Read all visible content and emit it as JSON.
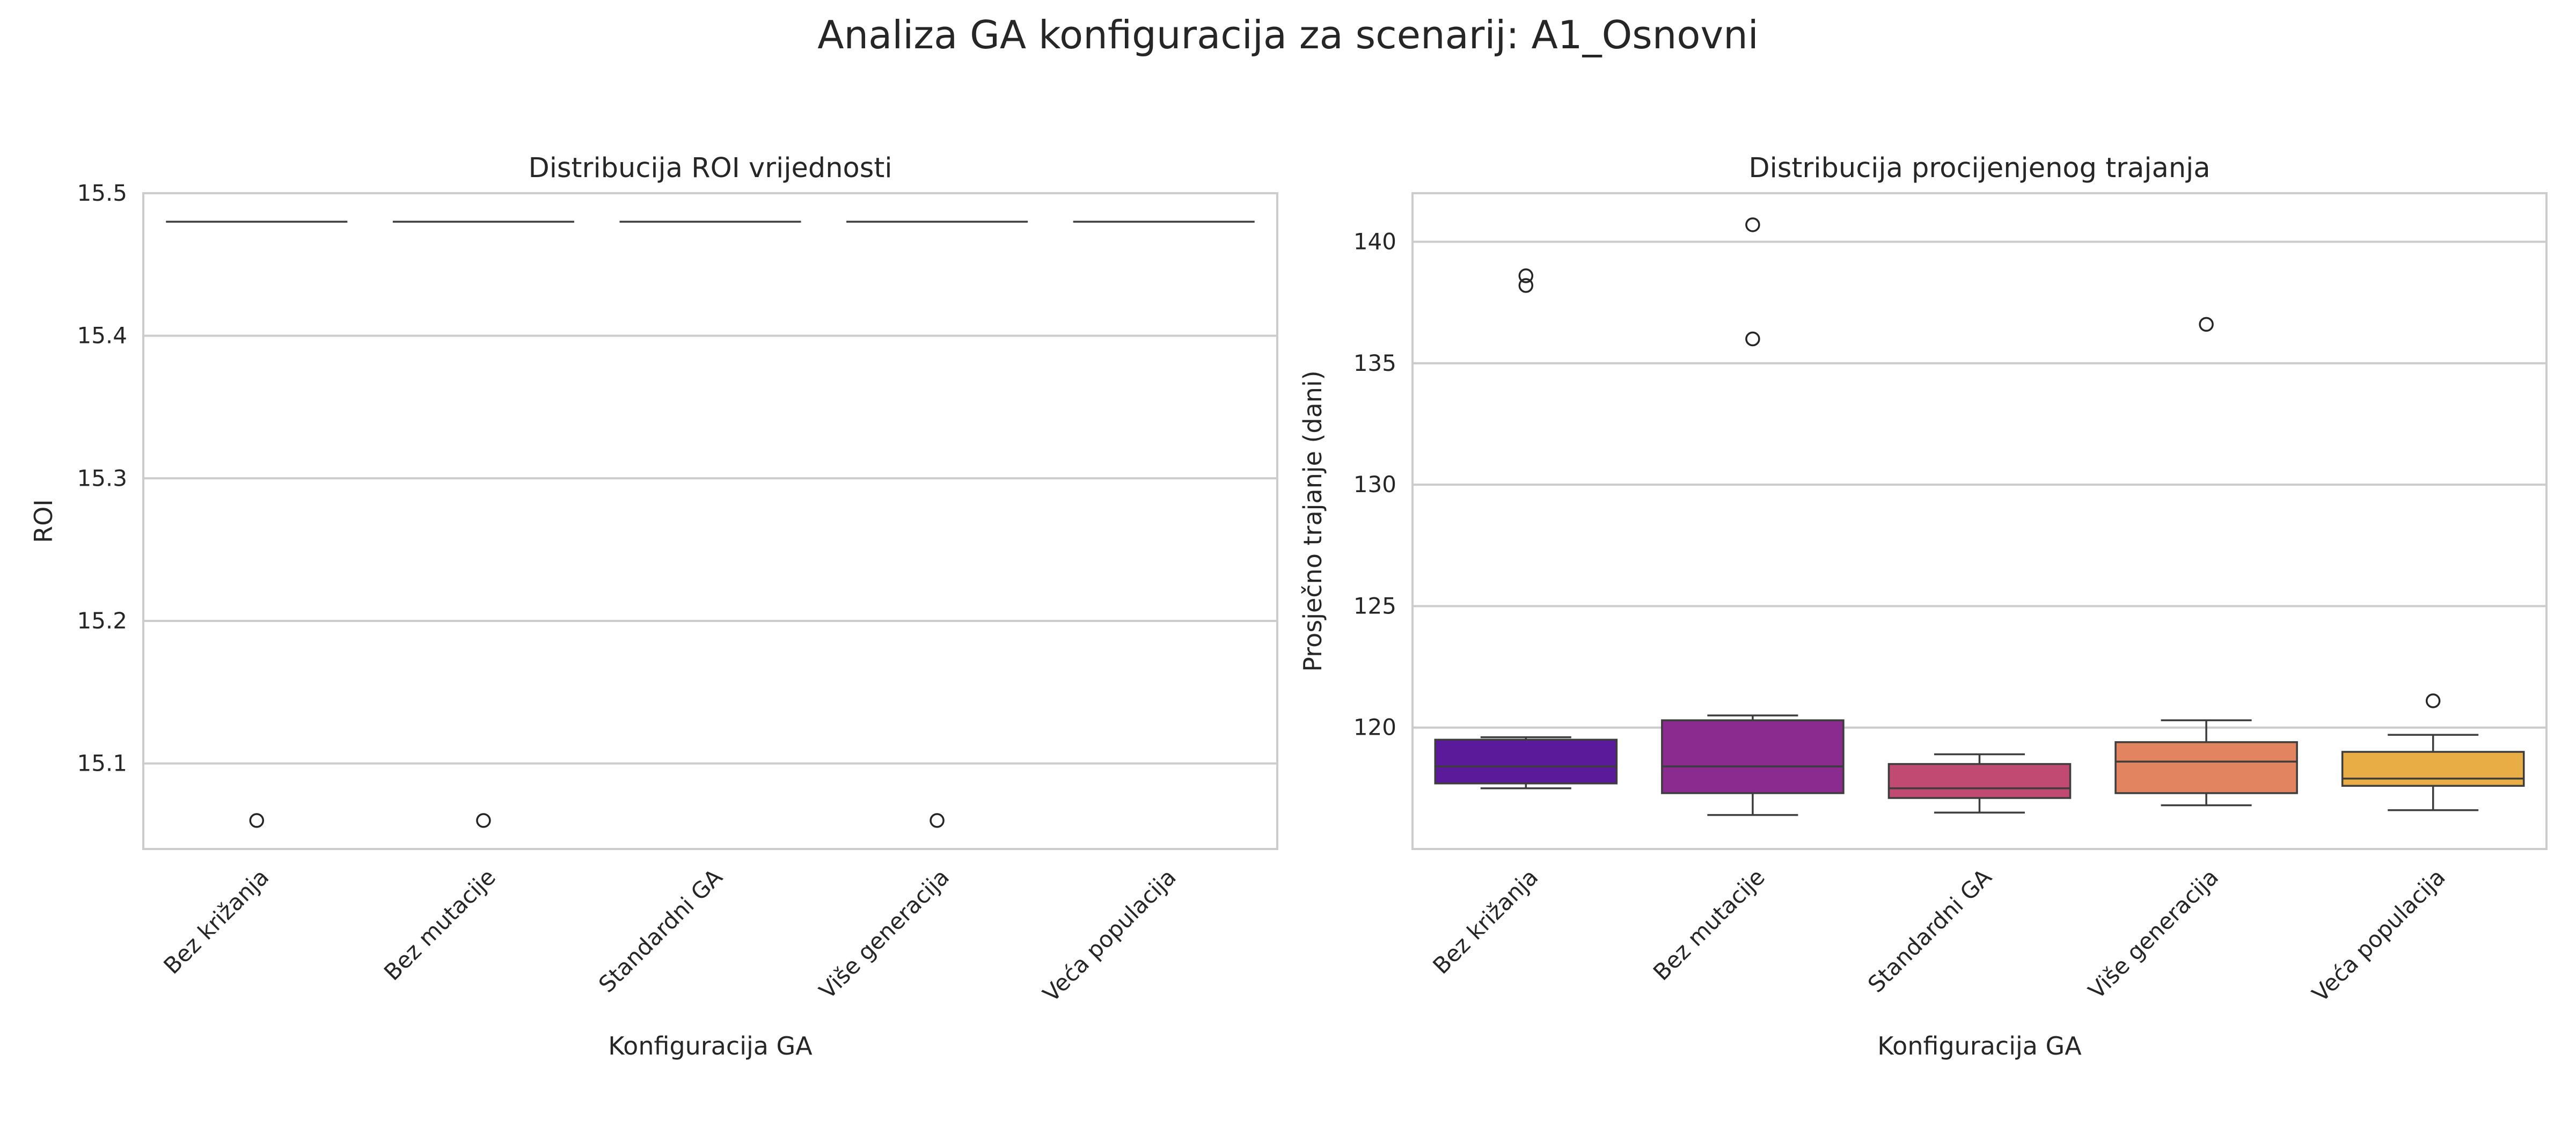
{
  "figure": {
    "suptitle": "Analiza GA konfiguracija za scenarij: A1_Osnovni"
  },
  "chart_data": [
    {
      "type": "box",
      "title": "Distribucija ROI vrijednosti",
      "xlabel": "Konfiguracija GA",
      "ylabel": "ROI",
      "categories": [
        "Bez križanja",
        "Bez mutacije",
        "Standardni GA",
        "Više generacija",
        "Veća populacija"
      ],
      "ylim": [
        15.04,
        15.5
      ],
      "yticks": [
        15.1,
        15.2,
        15.3,
        15.4,
        15.5
      ],
      "grid": true,
      "boxes": [
        {
          "q1": 15.48,
          "median": 15.48,
          "q3": 15.48,
          "whislo": 15.48,
          "whishi": 15.48,
          "fliers": [
            15.06
          ],
          "color": "#4c1d96"
        },
        {
          "q1": 15.48,
          "median": 15.48,
          "q3": 15.48,
          "whislo": 15.48,
          "whishi": 15.48,
          "fliers": [
            15.06
          ],
          "color": "#8b2a8f"
        },
        {
          "q1": 15.48,
          "median": 15.48,
          "q3": 15.48,
          "whislo": 15.48,
          "whishi": 15.48,
          "fliers": [],
          "color": "#c04a72"
        },
        {
          "q1": 15.48,
          "median": 15.48,
          "q3": 15.48,
          "whislo": 15.48,
          "whishi": 15.48,
          "fliers": [
            15.06
          ],
          "color": "#e1845f"
        },
        {
          "q1": 15.48,
          "median": 15.48,
          "q3": 15.48,
          "whislo": 15.48,
          "whishi": 15.48,
          "fliers": [],
          "color": "#e8ae45"
        }
      ]
    },
    {
      "type": "box",
      "title": "Distribucija procijenjenog trajanja",
      "xlabel": "Konfiguracija GA",
      "ylabel": "Prosječno trajanje (dani)",
      "categories": [
        "Bez križanja",
        "Bez mutacije",
        "Standardni GA",
        "Više generacija",
        "Veća populacija"
      ],
      "ylim": [
        115,
        142
      ],
      "yticks": [
        120,
        125,
        130,
        135,
        140
      ],
      "grid": true,
      "boxes": [
        {
          "q1": 117.7,
          "median": 118.4,
          "q3": 119.5,
          "whislo": 117.5,
          "whishi": 119.6,
          "fliers": [
            138.2,
            138.6
          ],
          "color": "#5a1a9a"
        },
        {
          "q1": 117.3,
          "median": 118.4,
          "q3": 120.3,
          "whislo": 116.4,
          "whishi": 120.5,
          "fliers": [
            136.0,
            140.7
          ],
          "color": "#8b2a8f"
        },
        {
          "q1": 117.1,
          "median": 117.5,
          "q3": 118.5,
          "whislo": 116.5,
          "whishi": 118.9,
          "fliers": [],
          "color": "#c04a72"
        },
        {
          "q1": 117.3,
          "median": 118.6,
          "q3": 119.4,
          "whislo": 116.8,
          "whishi": 120.3,
          "fliers": [
            136.6
          ],
          "color": "#e1845f"
        },
        {
          "q1": 117.6,
          "median": 117.9,
          "q3": 119.0,
          "whislo": 116.6,
          "whishi": 119.7,
          "fliers": [
            121.1
          ],
          "color": "#e8ae45"
        }
      ]
    }
  ]
}
